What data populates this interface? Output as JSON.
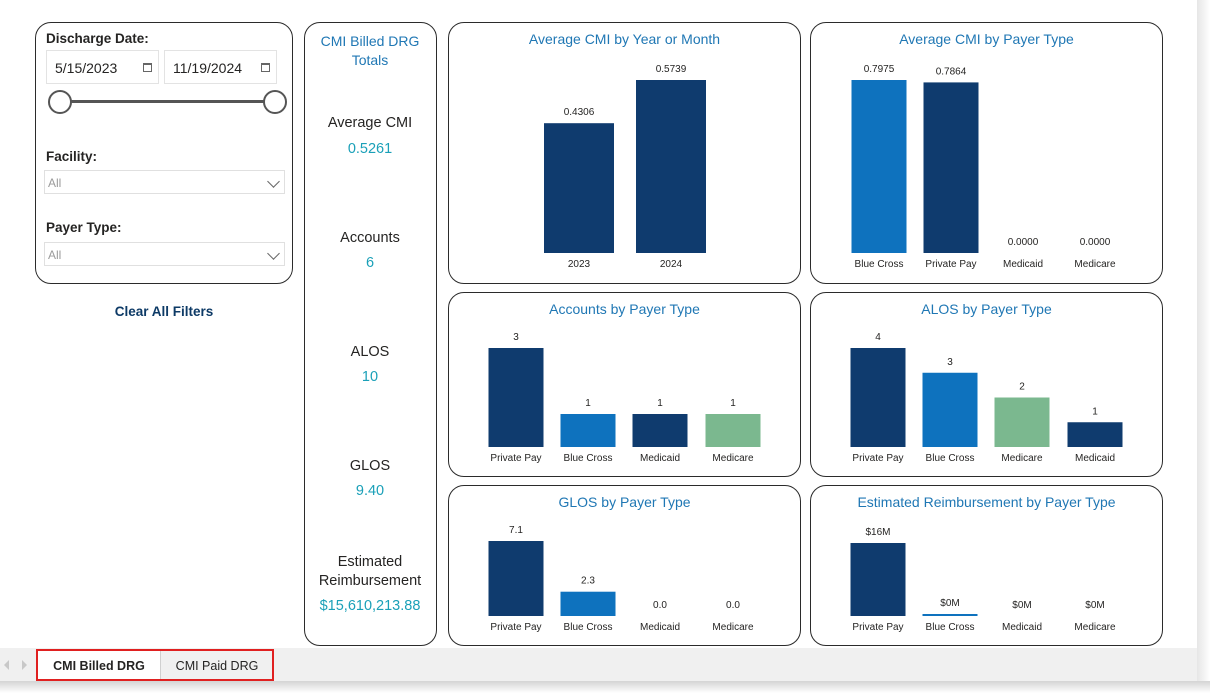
{
  "filters": {
    "discharge_date_label": "Discharge Date:",
    "start_date": "5/15/2023",
    "end_date": "11/19/2024",
    "facility_label": "Facility:",
    "facility_value": "All",
    "payer_type_label": "Payer Type:",
    "payer_type_value": "All",
    "clear_all_label": "Clear All Filters"
  },
  "totals": {
    "title_line1": "CMI Billed DRG",
    "title_line2": "Totals",
    "metrics": [
      {
        "label": "Average CMI",
        "value": "0.5261"
      },
      {
        "label": "Accounts",
        "value": "6"
      },
      {
        "label": "ALOS",
        "value": "10"
      },
      {
        "label": "GLOS",
        "value": "9.40"
      },
      {
        "label_line1": "Estimated",
        "label_line2": "Reimbursement",
        "value": "$15,610,213.88"
      }
    ]
  },
  "chart_data": [
    {
      "id": "chart-avg-cmi-year",
      "type": "bar",
      "title": "Average CMI by Year or Month",
      "categories": [
        "2023",
        "2024"
      ],
      "values": [
        0.4306,
        0.5739
      ],
      "labels": [
        "0.4306",
        "0.5739"
      ],
      "colors": [
        "#0f3b6e",
        "#0f3b6e"
      ],
      "ylim": [
        0,
        0.5739
      ]
    },
    {
      "id": "chart-avg-cmi-payer",
      "type": "bar",
      "title": "Average CMI by Payer Type",
      "categories": [
        "Blue Cross",
        "Private Pay",
        "Medicaid",
        "Medicare"
      ],
      "values": [
        0.7975,
        0.7864,
        0.0,
        0.0
      ],
      "labels": [
        "0.7975",
        "0.7864",
        "0.0000",
        "0.0000"
      ],
      "colors": [
        "#0e72be",
        "#0f3b6e",
        "#0f3b6e",
        "#0f3b6e"
      ],
      "ylim": [
        0,
        0.7975
      ]
    },
    {
      "id": "chart-accounts-payer",
      "type": "bar",
      "title": "Accounts by Payer Type",
      "categories": [
        "Private Pay",
        "Blue Cross",
        "Medicaid",
        "Medicare"
      ],
      "values": [
        3,
        1,
        1,
        1
      ],
      "labels": [
        "3",
        "1",
        "1",
        "1"
      ],
      "colors": [
        "#0f3b6e",
        "#0e72be",
        "#0f3b6e",
        "#7bb88f"
      ],
      "ylim": [
        0,
        3
      ]
    },
    {
      "id": "chart-alos-payer",
      "type": "bar",
      "title": "ALOS by Payer Type",
      "categories": [
        "Private Pay",
        "Blue Cross",
        "Medicare",
        "Medicaid"
      ],
      "values": [
        4,
        3,
        2,
        1
      ],
      "labels": [
        "4",
        "3",
        "2",
        "1"
      ],
      "colors": [
        "#0f3b6e",
        "#0e72be",
        "#7bb88f",
        "#0f3b6e"
      ],
      "ylim": [
        0,
        4
      ]
    },
    {
      "id": "chart-glos-payer",
      "type": "bar",
      "title": "GLOS by Payer Type",
      "categories": [
        "Private Pay",
        "Blue Cross",
        "Medicaid",
        "Medicare"
      ],
      "values": [
        7.1,
        2.3,
        0.0,
        0.0
      ],
      "labels": [
        "7.1",
        "2.3",
        "0.0",
        "0.0"
      ],
      "colors": [
        "#0f3b6e",
        "#0e72be",
        "#0f3b6e",
        "#0f3b6e"
      ],
      "ylim": [
        0,
        7.1
      ]
    },
    {
      "id": "chart-reimb-payer",
      "type": "bar",
      "title": "Estimated Reimbursement by Payer Type",
      "categories": [
        "Private Pay",
        "Blue Cross",
        "Medicaid",
        "Medicare"
      ],
      "values": [
        16,
        0.1,
        0,
        0
      ],
      "labels": [
        "$16M",
        "$0M",
        "$0M",
        "$0M"
      ],
      "colors": [
        "#0f3b6e",
        "#0e72be",
        "#0f3b6e",
        "#0f3b6e"
      ],
      "ylim": [
        0,
        16
      ]
    }
  ],
  "tabs": [
    {
      "label": "CMI Billed DRG",
      "active": true
    },
    {
      "label": "CMI Paid DRG",
      "active": false
    }
  ]
}
